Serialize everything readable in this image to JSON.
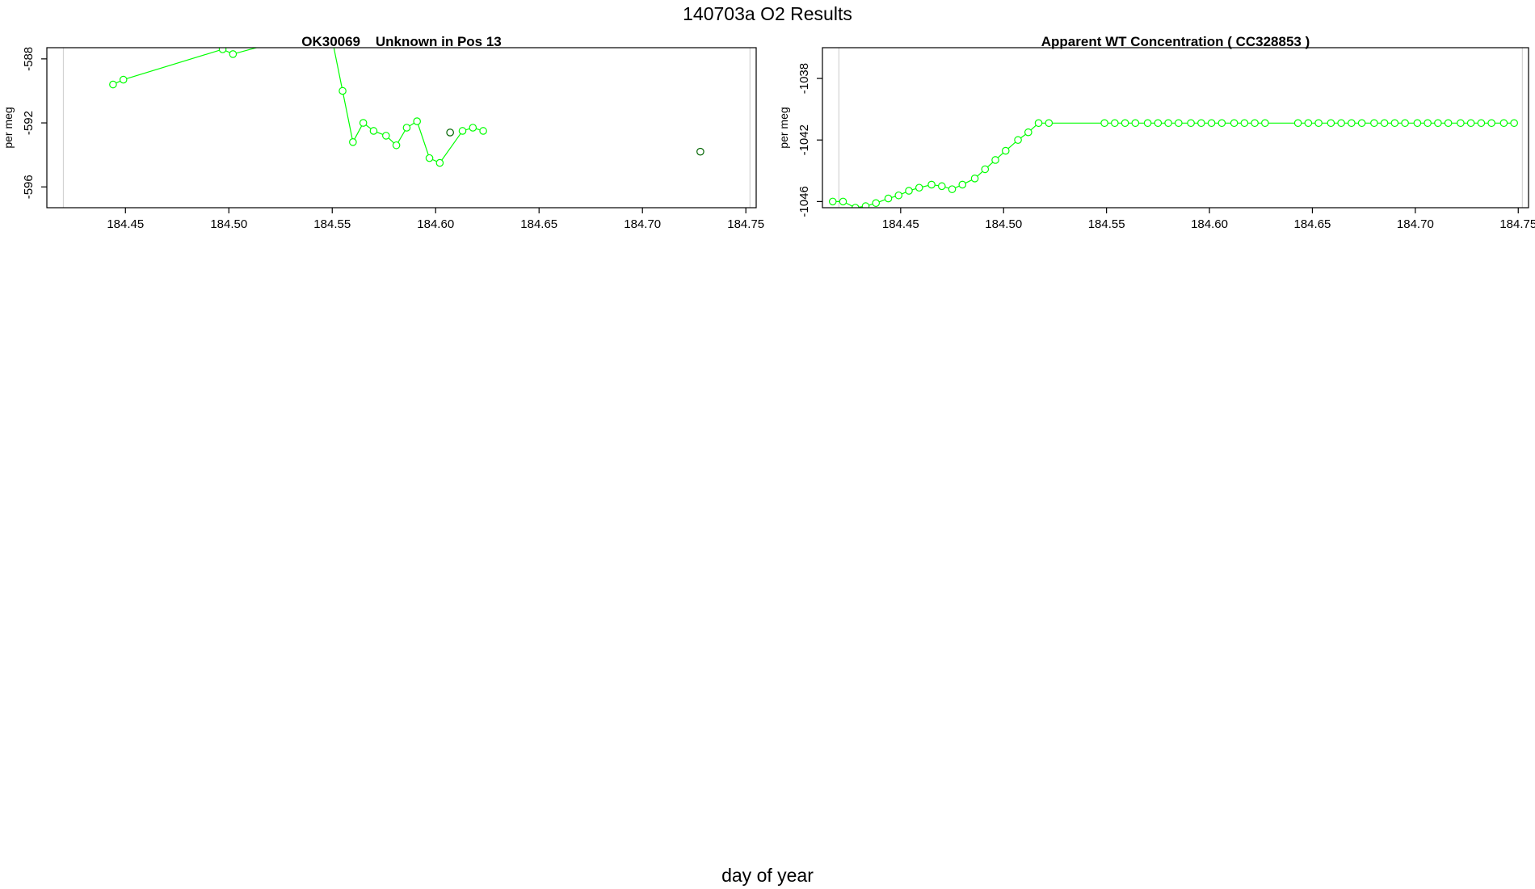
{
  "page": {
    "title": "140703a  O2 Results",
    "xlabel": "day of year"
  },
  "colors": {
    "series": "#00ff00",
    "highlight": "#006400",
    "frame": "#000000",
    "vline": "#d3d3d3"
  },
  "chart_data": [
    {
      "type": "scatter",
      "title": "OK30069    Unknown in Pos 13",
      "ylabel": "per meg",
      "xlim": [
        184.412,
        184.755
      ],
      "ylim": [
        -597.3,
        -587.3
      ],
      "xticks": [
        184.45,
        184.5,
        184.55,
        184.6,
        184.65,
        184.7,
        184.75
      ],
      "yticks": [
        -588,
        -592,
        -596
      ],
      "vlines": [
        184.42,
        184.752
      ],
      "series": [
        {
          "x": [
            184.444,
            184.449,
            184.497,
            184.502,
            184.536,
            184.55,
            184.555,
            184.56,
            184.565,
            184.57,
            184.576,
            184.581,
            184.586,
            184.591,
            184.597,
            184.602,
            184.613,
            184.618,
            184.623
          ],
          "y": [
            -589.6,
            -589.3,
            -587.4,
            -587.7,
            -586.5,
            -586.8,
            -590.0,
            -593.2,
            -592.0,
            -592.5,
            -592.8,
            -593.4,
            -592.3,
            -591.9,
            -594.2,
            -594.5,
            -592.5,
            -592.3,
            -592.5
          ],
          "connected": true,
          "color": "#00ff00"
        },
        {
          "x": [
            184.607,
            184.728
          ],
          "y": [
            -592.6,
            -593.8
          ],
          "connected": false,
          "color": "#006400"
        }
      ]
    },
    {
      "type": "scatter",
      "title": "Apparent WT Concentration ( CC328853 )",
      "ylabel": "per meg",
      "xlim": [
        184.412,
        184.755
      ],
      "ylim": [
        -1046.4,
        -1036.0
      ],
      "xticks": [
        184.45,
        184.5,
        184.55,
        184.6,
        184.65,
        184.7,
        184.75
      ],
      "yticks": [
        -1038,
        -1042,
        -1046
      ],
      "vlines": [
        184.42,
        184.752
      ],
      "series": [
        {
          "x": [
            184.417,
            184.422,
            184.428,
            184.433,
            184.438,
            184.444,
            184.449,
            184.454,
            184.459,
            184.465,
            184.47,
            184.475,
            184.48,
            184.486,
            184.491,
            184.496,
            184.501,
            184.507,
            184.512,
            184.517,
            184.522,
            184.549,
            184.554,
            184.559,
            184.564,
            184.57,
            184.575,
            184.58,
            184.585,
            184.591,
            184.596,
            184.601,
            184.606,
            184.612,
            184.617,
            184.622,
            184.627,
            184.643,
            184.648,
            184.653,
            184.659,
            184.664,
            184.669,
            184.674,
            184.68,
            184.685,
            184.69,
            184.695,
            184.701,
            184.706,
            184.711,
            184.716,
            184.722,
            184.727,
            184.732,
            184.737,
            184.743,
            184.748
          ],
          "y": [
            -1046.0,
            -1046.0,
            -1046.4,
            -1046.3,
            -1046.1,
            -1045.8,
            -1045.6,
            -1045.3,
            -1045.1,
            -1044.9,
            -1045.0,
            -1045.2,
            -1044.9,
            -1044.5,
            -1043.9,
            -1043.3,
            -1042.7,
            -1042.0,
            -1041.5,
            -1040.9,
            -1040.9,
            -1040.9,
            -1040.9,
            -1040.9,
            -1040.9,
            -1040.9,
            -1040.9,
            -1040.9,
            -1040.9,
            -1040.9,
            -1040.9,
            -1040.9,
            -1040.9,
            -1040.9,
            -1040.9,
            -1040.9,
            -1040.9,
            -1040.9,
            -1040.9,
            -1040.9,
            -1040.9,
            -1040.9,
            -1040.9,
            -1040.9,
            -1040.9,
            -1040.9,
            -1040.9,
            -1040.9,
            -1040.9,
            -1040.9,
            -1040.9,
            -1040.9,
            -1040.9,
            -1040.9,
            -1040.9,
            -1040.9,
            -1040.9,
            -1040.9
          ],
          "connected": true,
          "color": "#00ff00"
        }
      ]
    }
  ]
}
